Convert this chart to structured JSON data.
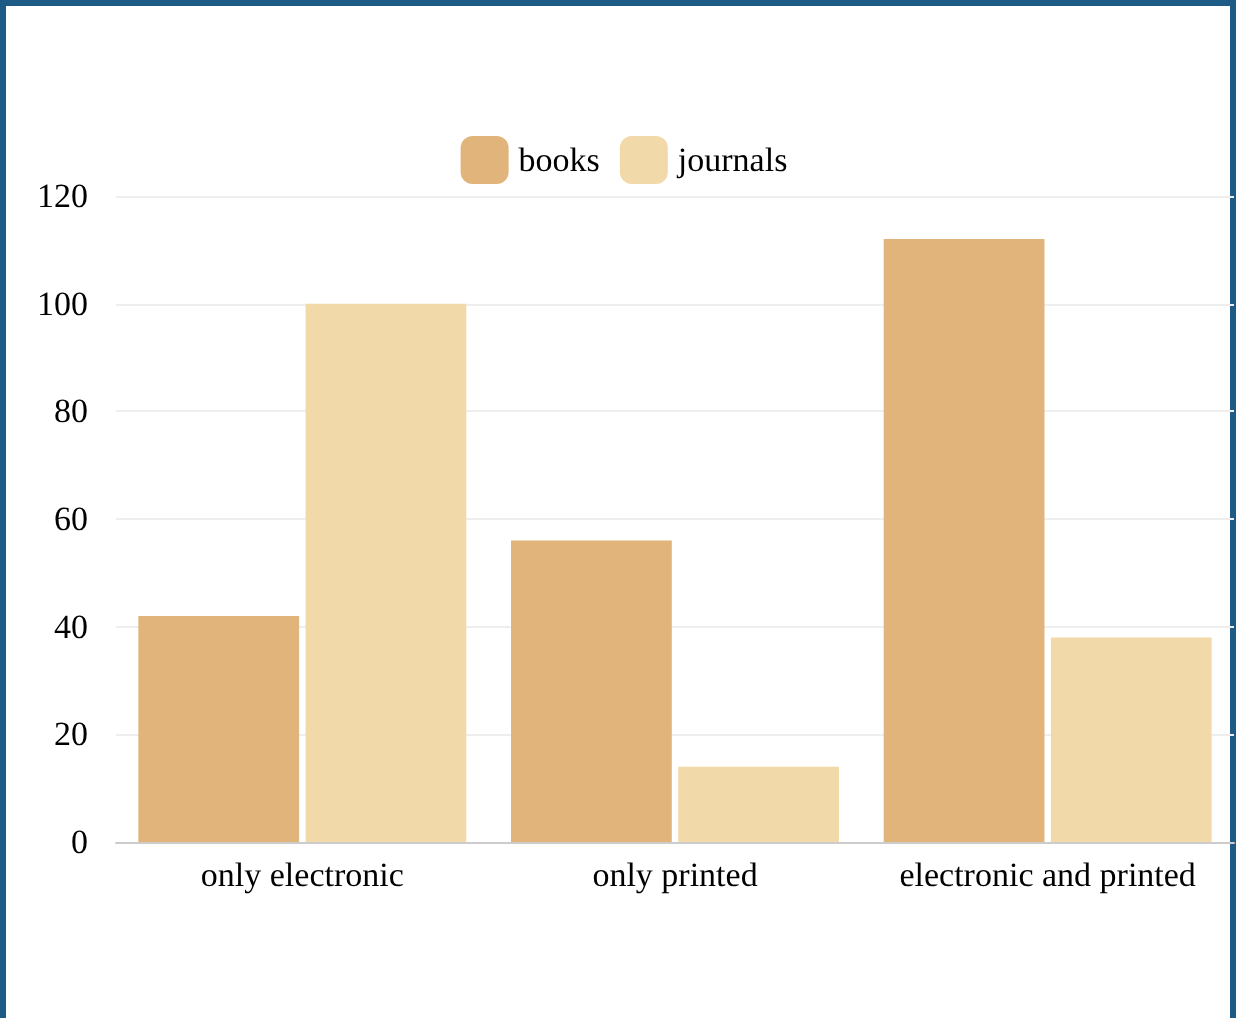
{
  "chart_data": {
    "type": "bar",
    "categories": [
      "only electronic",
      "only printed",
      "electronic and printed"
    ],
    "series": [
      {
        "name": "books",
        "color": "#e0b47b",
        "values": [
          42,
          56,
          112
        ]
      },
      {
        "name": "journals",
        "color": "#f2d9a9",
        "values": [
          100,
          14,
          38
        ]
      }
    ],
    "ylim": [
      0,
      120
    ],
    "yticks": [
      0,
      20,
      40,
      60,
      80,
      100,
      120
    ],
    "grid": "y",
    "legend": "top"
  }
}
